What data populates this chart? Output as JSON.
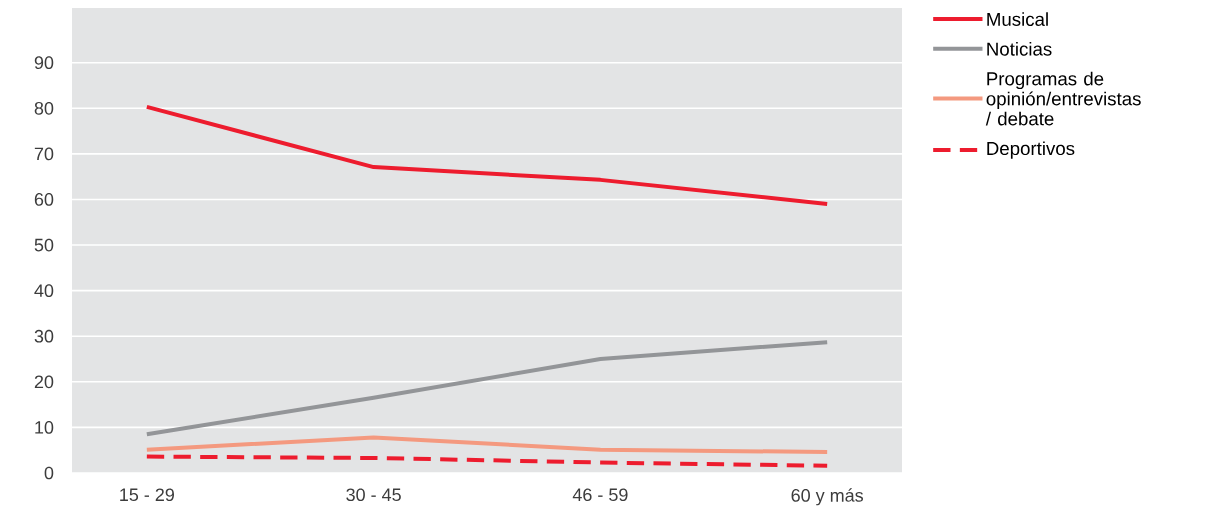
{
  "chart_data": {
    "type": "line",
    "categories": [
      "15 - 29",
      "30 - 45",
      "46 - 59",
      "60 y más"
    ],
    "series": [
      {
        "name": "Musical",
        "color": "#ed1c2e",
        "values": [
          80.3,
          67.1,
          64.3,
          59.0
        ]
      },
      {
        "name": "Noticias",
        "color": "#939598",
        "values": [
          8.5,
          16.5,
          25.0,
          28.7
        ]
      },
      {
        "name": "Programas de opinión/entrevistas / debate",
        "color": "#f4997f",
        "values": [
          5.1,
          7.8,
          5.1,
          4.6
        ]
      },
      {
        "name": "Deportivos",
        "color": "#ed1c2e",
        "line_style": "dashed",
        "values": [
          3.6,
          3.3,
          2.3,
          1.6
        ]
      }
    ],
    "ylim": [
      0,
      102
    ],
    "yticks": [
      0,
      10,
      20,
      30,
      40,
      50,
      60,
      70,
      80,
      90
    ],
    "grid": "y",
    "legend": "top right",
    "marker": "none"
  }
}
